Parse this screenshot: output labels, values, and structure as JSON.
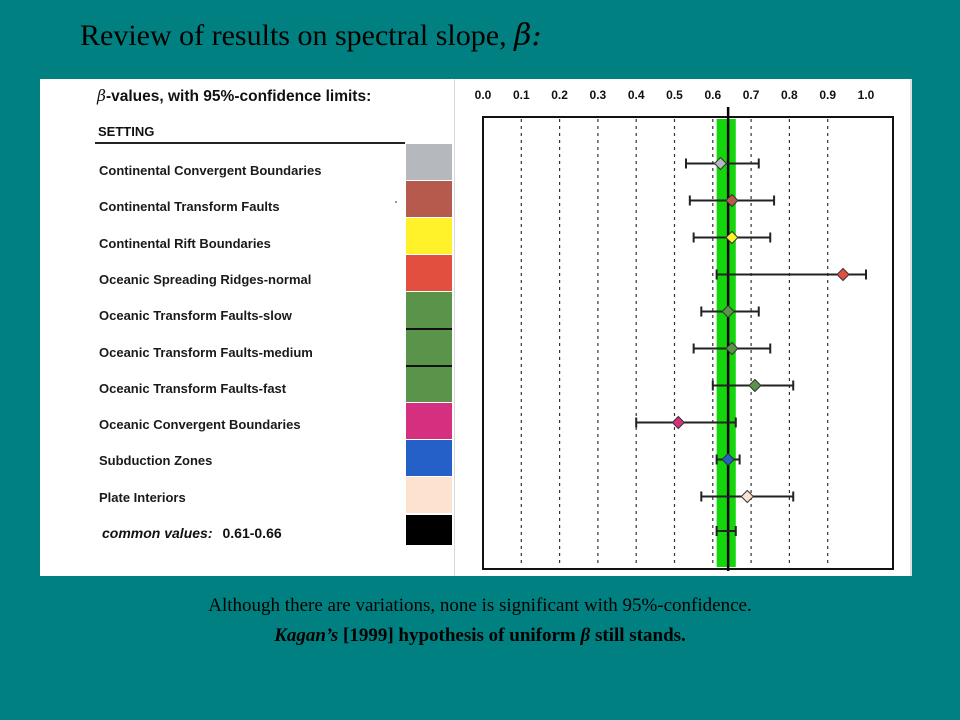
{
  "slide": {
    "title_text": "Review of results on spectral slope,",
    "title_symbol": "β:",
    "caption_line1": "Although there are variations, none is significant with 95%-confidence.",
    "caption_line2_italic": "Kagan’s",
    "caption_line2_rest": "[1999] hypothesis of uniform",
    "caption_line2_symbol": "β",
    "caption_line2_end": "still stands."
  },
  "table": {
    "title_symbol": "β",
    "title_text": "-values, with 95%-confidence limits:",
    "setting_header": "SETTING",
    "common_label": "common values:",
    "common_value": "0.61-0.66"
  },
  "chart_data": {
    "type": "scatter",
    "orientation": "horizontal",
    "title": "",
    "xlabel": "",
    "ylabel": "",
    "xlim": [
      0.0,
      1.0
    ],
    "x_ticks": [
      "0.0",
      "0.1",
      "0.2",
      "0.3",
      "0.4",
      "0.5",
      "0.6",
      "0.7",
      "0.8",
      "0.9",
      "1.0"
    ],
    "x_tick_values": [
      0.0,
      0.1,
      0.2,
      0.3,
      0.4,
      0.5,
      0.6,
      0.7,
      0.8,
      0.9,
      1.0
    ],
    "tick_position": "top",
    "grid": "dotted vertical",
    "categories": [
      "Continental Convergent Boundaries",
      "Continental Transform Faults",
      "Continental Rift Boundaries",
      "Oceanic Spreading Ridges-normal",
      "Oceanic Transform Faults-slow",
      "Oceanic Transform Faults-medium",
      "Oceanic Transform Faults-fast",
      "Oceanic Convergent Boundaries",
      "Subduction Zones",
      "Plate Interiors"
    ],
    "colors": [
      "#b5b8bd",
      "#b55a4c",
      "#fff22a",
      "#e24f3f",
      "#5a944a",
      "#5a944a",
      "#5a944a",
      "#d4307f",
      "#2460c8",
      "#fde3cf"
    ],
    "values": [
      0.62,
      0.65,
      0.65,
      0.94,
      0.64,
      0.65,
      0.71,
      0.51,
      0.64,
      0.69
    ],
    "ci_low": [
      0.53,
      0.54,
      0.55,
      0.61,
      0.57,
      0.55,
      0.6,
      0.4,
      0.61,
      0.57
    ],
    "ci_high": [
      0.72,
      0.76,
      0.75,
      1.0,
      0.72,
      0.75,
      0.81,
      0.66,
      0.67,
      0.81
    ],
    "common_values": {
      "label": "common values:",
      "low": 0.61,
      "high": 0.66,
      "swatch_color": "#000000",
      "bar_color": "#15d60d",
      "reference_line": 0.64
    }
  }
}
